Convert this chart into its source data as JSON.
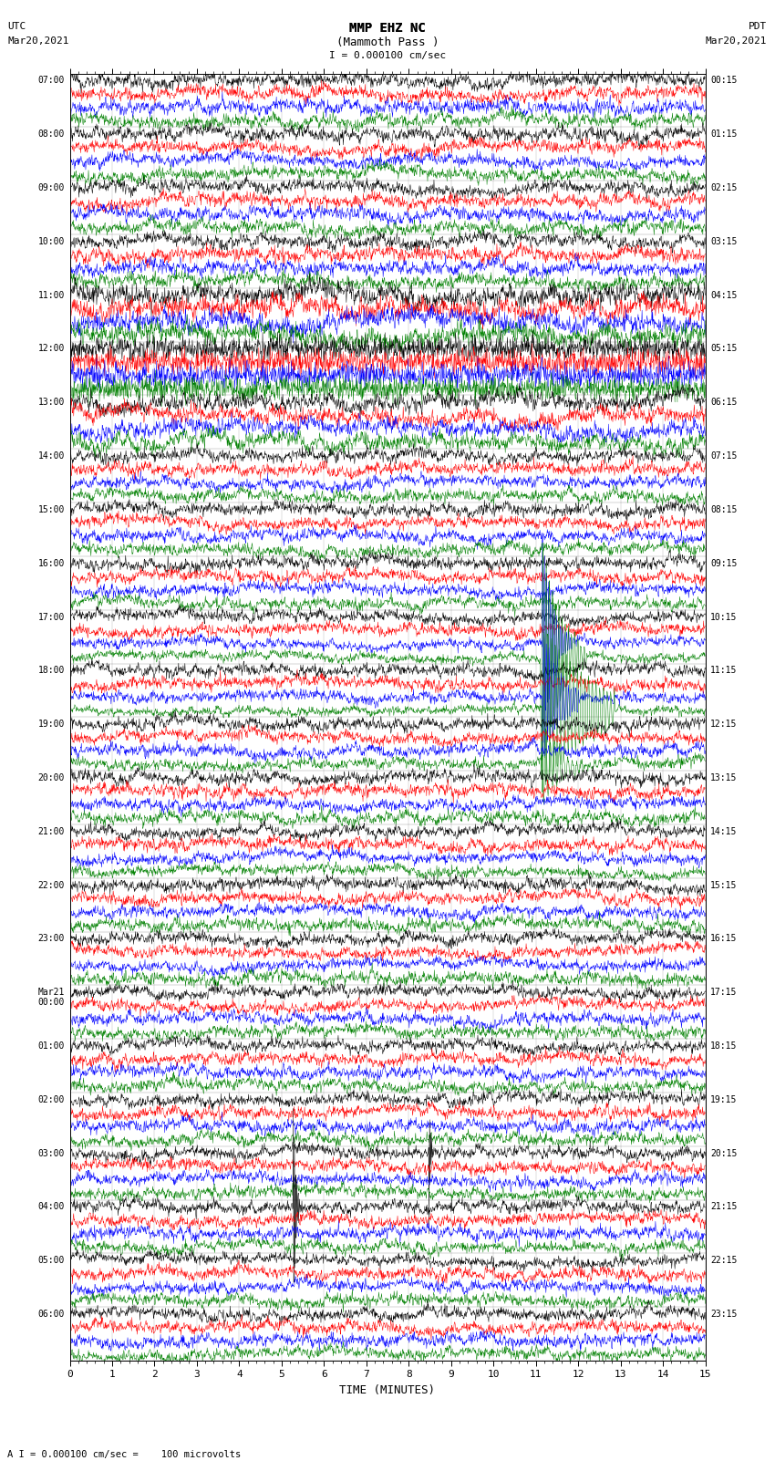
{
  "title_line1": "MMP EHZ NC",
  "title_line2": "(Mammoth Pass )",
  "scale_text": "I = 0.000100 cm/sec",
  "bottom_text": "A I = 0.000100 cm/sec =    100 microvolts",
  "utc_label": "UTC",
  "utc_date": "Mar20,2021",
  "pdt_label": "PDT",
  "pdt_date": "Mar20,2021",
  "xlabel": "TIME (MINUTES)",
  "left_times_utc": [
    "07:00",
    "08:00",
    "09:00",
    "10:00",
    "11:00",
    "12:00",
    "13:00",
    "14:00",
    "15:00",
    "16:00",
    "17:00",
    "18:00",
    "19:00",
    "20:00",
    "21:00",
    "22:00",
    "23:00",
    "Mar21\n00:00",
    "01:00",
    "02:00",
    "03:00",
    "04:00",
    "05:00",
    "06:00"
  ],
  "right_times_pdt": [
    "00:15",
    "01:15",
    "02:15",
    "03:15",
    "04:15",
    "05:15",
    "06:15",
    "07:15",
    "08:15",
    "09:15",
    "10:15",
    "11:15",
    "12:15",
    "13:15",
    "14:15",
    "15:15",
    "16:15",
    "17:15",
    "18:15",
    "19:15",
    "20:15",
    "21:15",
    "22:15",
    "23:15"
  ],
  "num_rows": 24,
  "traces_per_row": 4,
  "colors": [
    "black",
    "red",
    "blue",
    "green"
  ],
  "x_min": 0,
  "x_max": 15,
  "x_ticks": [
    0,
    1,
    2,
    3,
    4,
    5,
    6,
    7,
    8,
    9,
    10,
    11,
    12,
    13,
    14,
    15
  ],
  "background_color": "white",
  "fig_width": 8.5,
  "fig_height": 16.13,
  "dpi": 100
}
